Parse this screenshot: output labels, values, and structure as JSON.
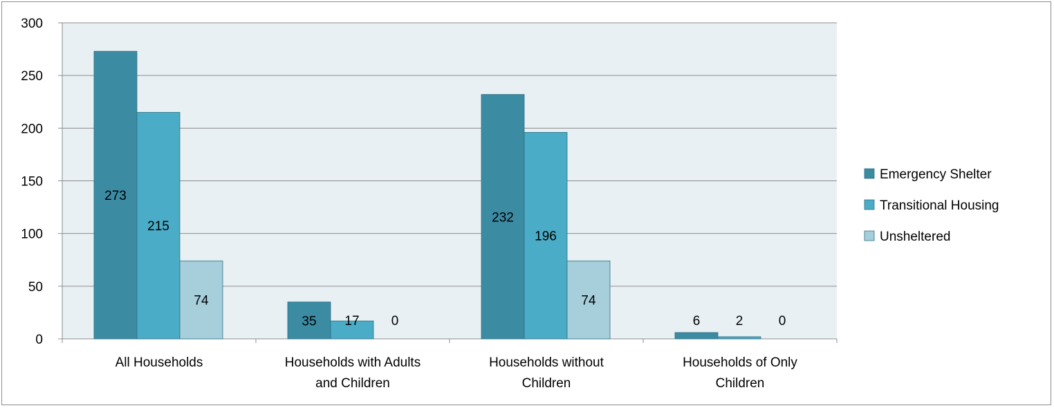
{
  "chart_data": {
    "type": "bar",
    "categories": [
      [
        "All Households"
      ],
      [
        "Households with Adults",
        "and Children"
      ],
      [
        "Households without",
        "Children"
      ],
      [
        "Households of Only",
        "Children"
      ]
    ],
    "series": [
      {
        "name": "Emergency Shelter",
        "values": [
          273,
          35,
          232,
          6
        ],
        "color": "#3b8ba3"
      },
      {
        "name": "Transitional Housing",
        "values": [
          215,
          17,
          196,
          2
        ],
        "color": "#4aacc6"
      },
      {
        "name": "Unsheltered",
        "values": [
          74,
          0,
          74,
          0
        ],
        "color": "#a6cedb"
      }
    ],
    "ylim": [
      0,
      300
    ],
    "yticks": [
      0,
      50,
      100,
      150,
      200,
      250,
      300
    ],
    "grid": true,
    "plot_background": "#e8f0f4",
    "legend_position": "right"
  }
}
